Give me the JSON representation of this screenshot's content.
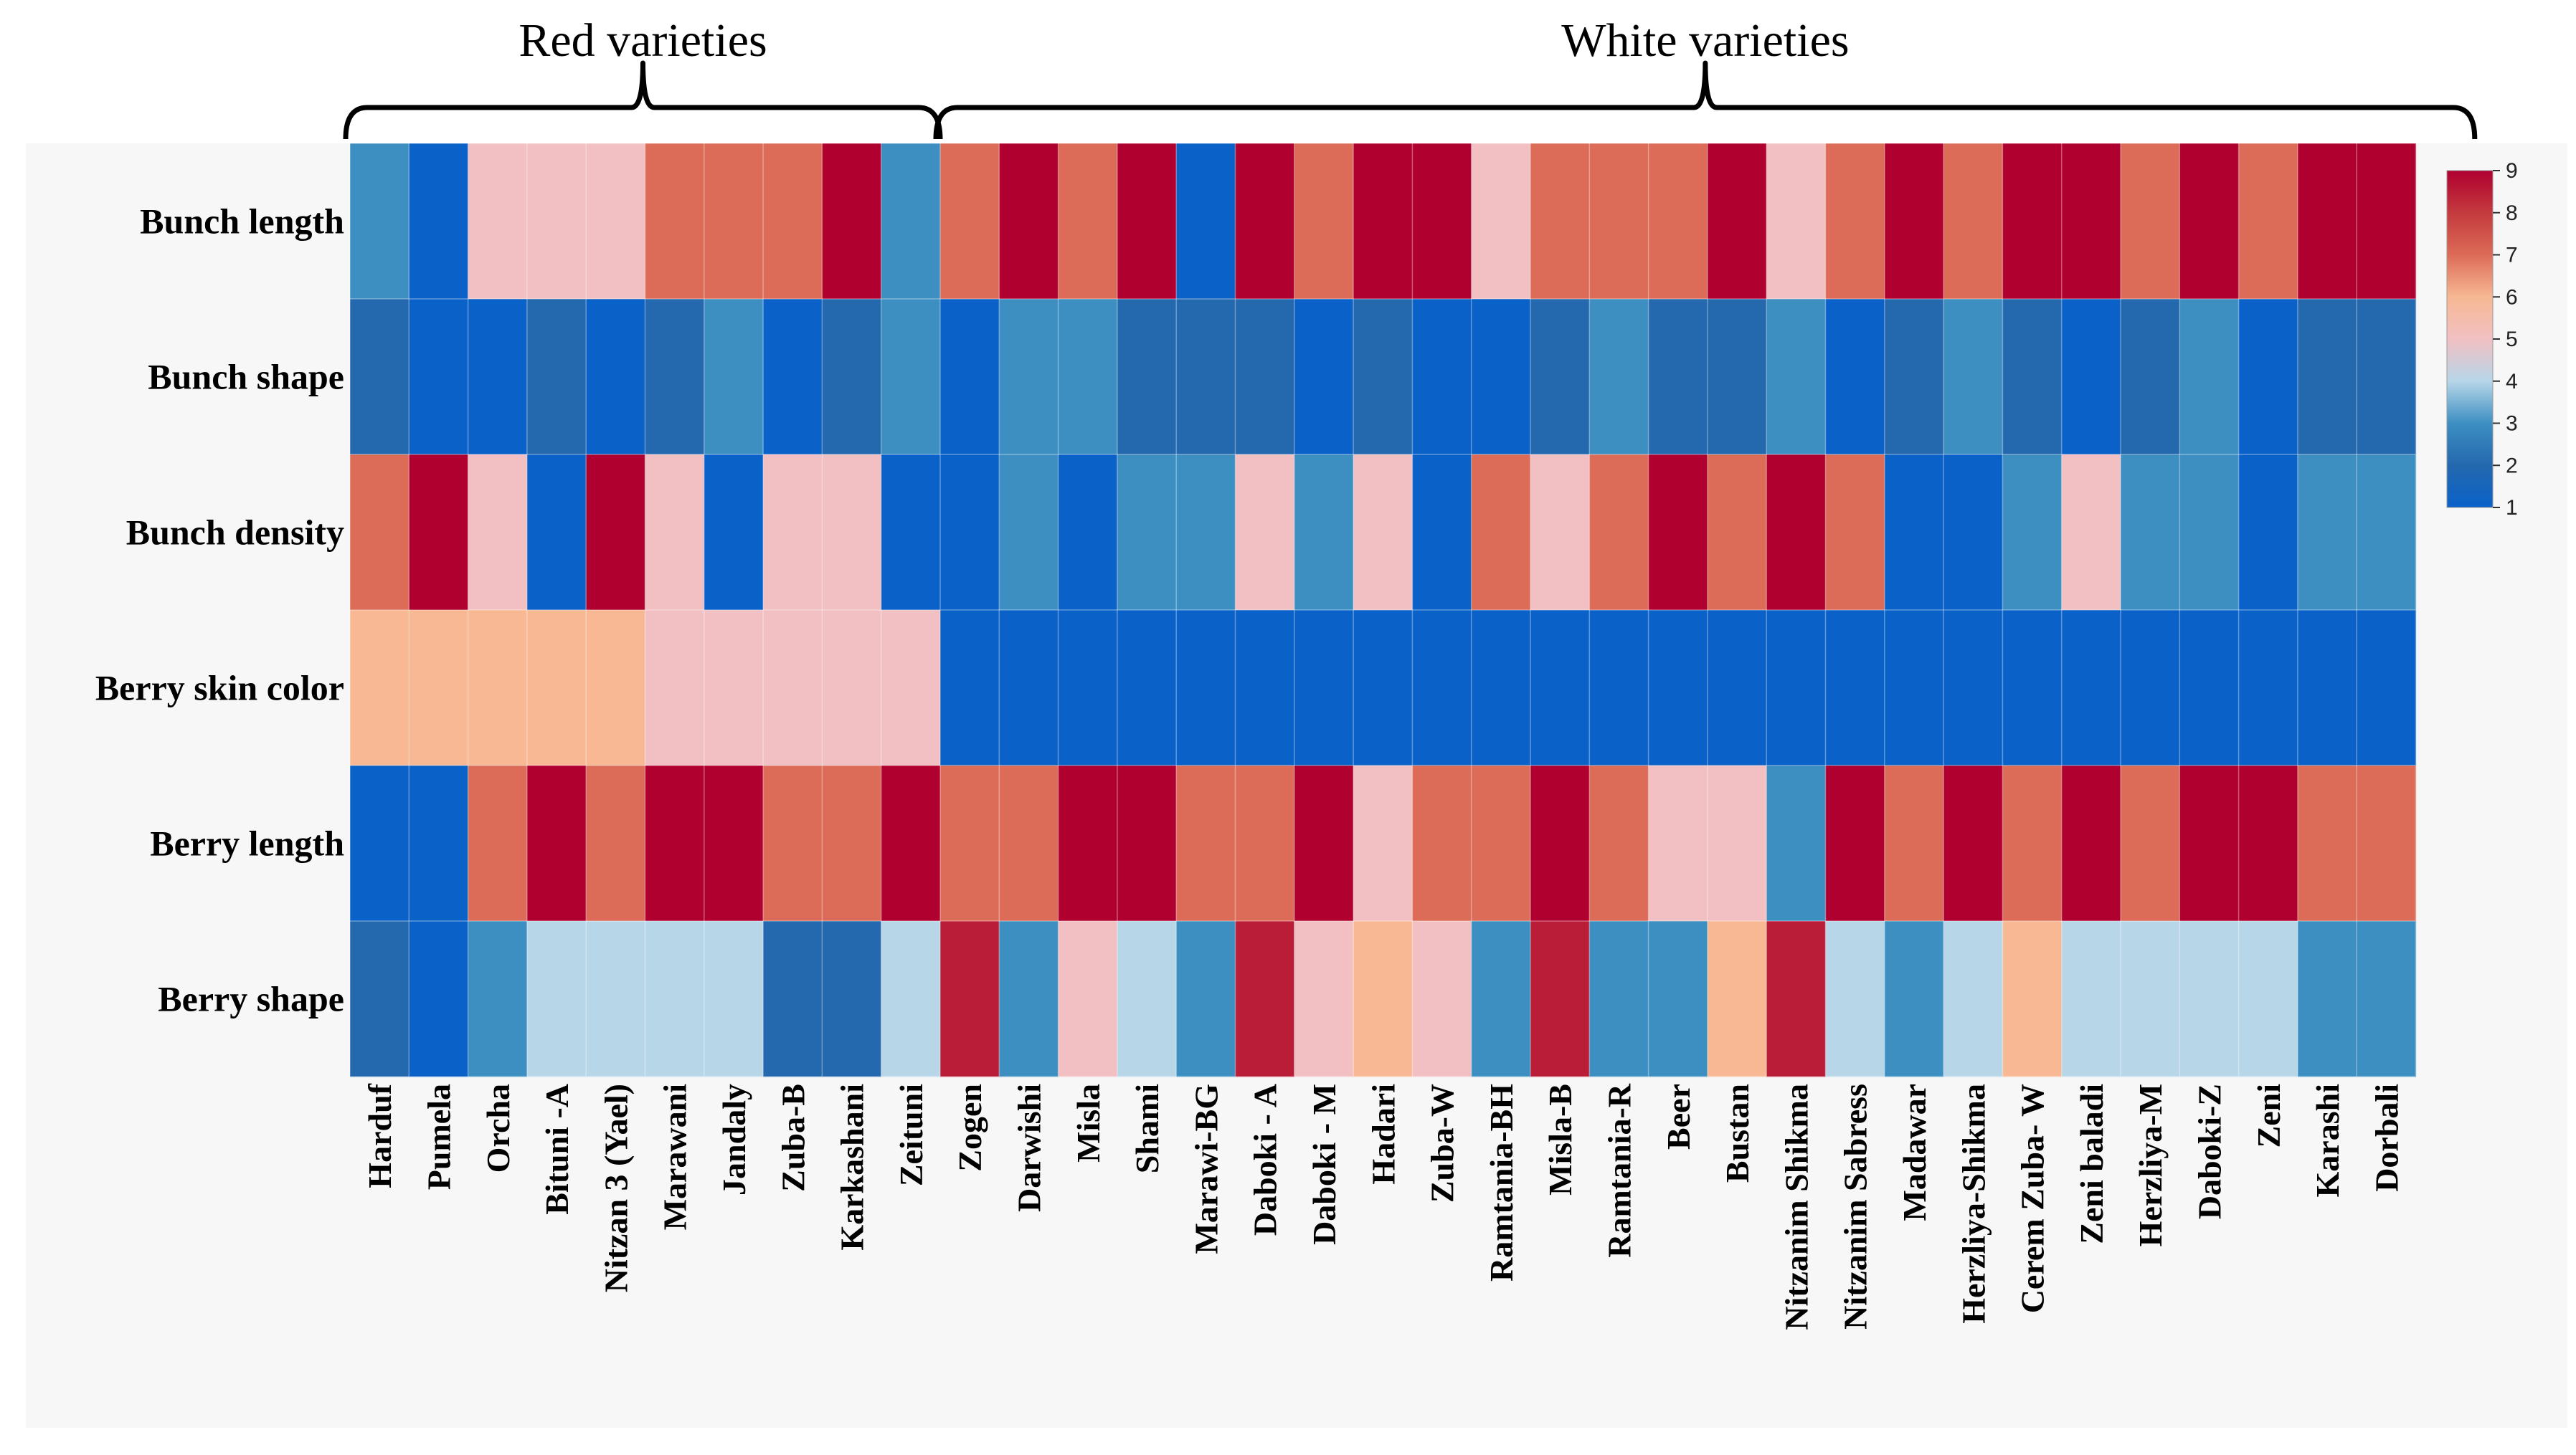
{
  "chart_data": {
    "type": "heatmap",
    "groups": [
      {
        "label": "Red varieties",
        "start": 0,
        "end": 9
      },
      {
        "label": "White varieties",
        "start": 10,
        "end": 35
      }
    ],
    "rows": [
      "Bunch length",
      "Bunch shape",
      "Bunch density",
      "Berry skin color",
      "Berry length",
      "Berry shape"
    ],
    "columns": [
      "Harduf",
      "Pumela",
      "Orcha",
      "Bituni -A",
      "Nitzan 3 (Yael)",
      "Marawani",
      "Jandaly",
      "Zuba-B",
      "Karkashani",
      "Zeituni",
      "Zogen",
      "Darwishi",
      "Misla",
      "Shami",
      "Marawi-BG",
      "Daboki  - A",
      "Daboki - M",
      "Hadari",
      "Zuba-W",
      "Ramtania-BH",
      "Misla-B",
      "Ramtania-R",
      "Beer",
      "Bustan",
      "Nitzanim  Shikma",
      "Nitzanim Sabress",
      "Madawar",
      "Herzliya-Shikma",
      "Cerem Zuba- W",
      "Zeni baladi",
      "Herzliya-M",
      "Daboki-Z",
      "Zeni",
      "Karashi",
      "Dorbali"
    ],
    "values": [
      [
        3,
        1,
        5,
        5,
        5,
        7,
        7,
        7,
        9,
        3,
        7,
        9,
        7,
        9,
        1,
        9,
        7,
        9,
        9,
        5,
        7,
        7,
        7,
        9,
        5,
        7,
        9,
        7,
        9,
        9,
        7,
        9,
        7,
        9,
        9
      ],
      [
        2,
        1,
        1,
        2,
        1,
        2,
        3,
        1,
        2,
        3,
        1,
        3,
        3,
        2,
        2,
        2,
        1,
        2,
        1,
        1,
        2,
        3,
        2,
        2,
        3,
        1,
        2,
        3,
        2,
        1,
        2,
        3,
        1,
        2,
        2
      ],
      [
        7,
        9,
        5,
        1,
        9,
        5,
        1,
        5,
        5,
        1,
        1,
        3,
        1,
        3,
        3,
        5,
        3,
        5,
        1,
        7,
        5,
        7,
        9,
        7,
        9,
        7,
        1,
        1,
        3,
        5,
        3,
        3,
        1,
        3,
        3
      ],
      [
        6,
        6,
        6,
        6,
        6,
        5,
        5,
        5,
        5,
        5,
        1,
        1,
        1,
        1,
        1,
        1,
        1,
        1,
        1,
        1,
        1,
        1,
        1,
        1,
        1,
        1,
        1,
        1,
        1,
        1,
        1,
        1,
        1,
        1,
        1
      ],
      [
        1,
        1,
        7,
        9,
        7,
        9,
        9,
        7,
        7,
        9,
        7,
        7,
        9,
        9,
        7,
        7,
        9,
        5,
        7,
        7,
        9,
        7,
        5,
        5,
        3,
        9,
        7,
        9,
        7,
        9,
        7,
        9,
        9,
        7,
        7
      ],
      [
        2,
        1,
        3,
        4,
        4,
        4,
        4,
        2,
        2,
        4,
        8.5,
        3,
        5,
        4,
        3,
        8.5,
        5,
        6,
        5,
        3,
        8.5,
        3,
        3,
        6,
        8.5,
        4,
        3,
        4,
        6,
        4,
        4,
        4,
        4,
        3,
        3
      ]
    ],
    "color_scale": {
      "min": 1,
      "max": 9,
      "stops": [
        "#0a62c8",
        "#2468ae",
        "#3d8fc2",
        "#b7d6e8",
        "#f2c0c3",
        "#f7b893",
        "#dc6b57",
        "#c43a3e",
        "#b00030"
      ],
      "ticks": [
        "1",
        "2",
        "3",
        "4",
        "5",
        "6",
        "7",
        "8",
        "9"
      ]
    },
    "legend_position": "top-right"
  }
}
